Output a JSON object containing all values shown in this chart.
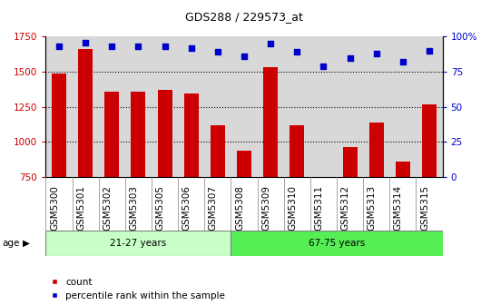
{
  "title": "GDS288 / 229573_at",
  "samples": [
    "GSM5300",
    "GSM5301",
    "GSM5302",
    "GSM5303",
    "GSM5305",
    "GSM5306",
    "GSM5307",
    "GSM5308",
    "GSM5309",
    "GSM5310",
    "GSM5311",
    "GSM5312",
    "GSM5313",
    "GSM5314",
    "GSM5315"
  ],
  "counts": [
    1490,
    1660,
    1360,
    1355,
    1370,
    1345,
    1120,
    940,
    1530,
    1120,
    750,
    960,
    1140,
    860,
    1270
  ],
  "percentiles": [
    93,
    96,
    93,
    93,
    93,
    92,
    89,
    86,
    95,
    89,
    79,
    85,
    88,
    82,
    90
  ],
  "group1_label": "21-27 years",
  "group2_label": "67-75 years",
  "group1_count": 7,
  "group2_count": 8,
  "bar_color": "#cc0000",
  "dot_color": "#0000cc",
  "ylim_left": [
    750,
    1750
  ],
  "ylim_right": [
    0,
    100
  ],
  "yticks_left": [
    750,
    1000,
    1250,
    1500,
    1750
  ],
  "yticks_right": [
    0,
    25,
    50,
    75,
    100
  ],
  "ytick_labels_right": [
    "0",
    "25",
    "50",
    "75",
    "100%"
  ],
  "group1_bg": "#c8ffc8",
  "group2_bg": "#55ee55",
  "plot_bg": "#d8d8d8",
  "age_label": "age",
  "legend_count_label": "count",
  "legend_pct_label": "percentile rank within the sample",
  "title_fontsize": 9,
  "tick_fontsize": 7.5,
  "label_fontsize": 7.5
}
